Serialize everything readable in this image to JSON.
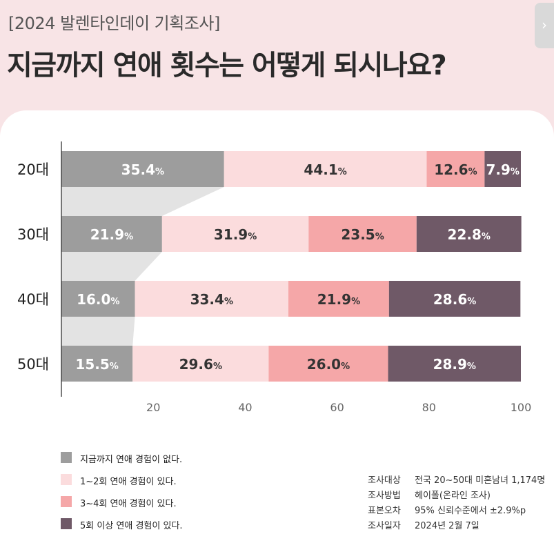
{
  "header": {
    "tag": "[2024 발렌타인데이 기획조사]",
    "title": "지금까지 연애 횟수는 어떻게 되시나요?"
  },
  "corner_button": {
    "label": "›"
  },
  "colors": {
    "none": "#9d9d9d",
    "one_two": "#fbdcdd",
    "three_four": "#f5a7a8",
    "five_plus": "#6f5967",
    "funnel": "#dcdcdc",
    "header_bg": "#f8e4e6"
  },
  "chart_data": {
    "type": "bar",
    "orientation": "horizontal",
    "stacked": true,
    "categories": [
      "20대",
      "30대",
      "40대",
      "50대"
    ],
    "series": [
      {
        "name": "지금까지 연애 경험이 없다.",
        "values": [
          35.4,
          21.9,
          16.0,
          15.5
        ],
        "color": "#9d9d9d",
        "label_color": "#ffffff"
      },
      {
        "name": "1~2회 연애 경험이 있다.",
        "values": [
          44.1,
          31.9,
          33.4,
          29.6
        ],
        "color": "#fbdcdd",
        "label_color": "#333333"
      },
      {
        "name": "3~4회 연애 경험이 있다.",
        "values": [
          12.6,
          23.5,
          21.9,
          26.0
        ],
        "color": "#f5a7a8",
        "label_color": "#333333"
      },
      {
        "name": "5회 이상 연애 경험이 있다.",
        "values": [
          7.9,
          22.8,
          28.6,
          28.9
        ],
        "color": "#6f5967",
        "label_color": "#ffffff"
      }
    ],
    "value_suffix": "%",
    "xlim": [
      0,
      100
    ],
    "xticks": [
      "20",
      "40",
      "60",
      "80",
      "100"
    ],
    "grid": false,
    "legend_position": "bottom-left"
  },
  "survey_info": [
    {
      "key": "조사대상",
      "value": "전국 20~50대 미혼남녀 1,174명"
    },
    {
      "key": "조사방법",
      "value": "헤이폴(온라인 조사)"
    },
    {
      "key": "표본오차",
      "value": "95% 신뢰수준에서 ±2.9%p"
    },
    {
      "key": "조사일자",
      "value": "2024년 2월 7일"
    }
  ]
}
